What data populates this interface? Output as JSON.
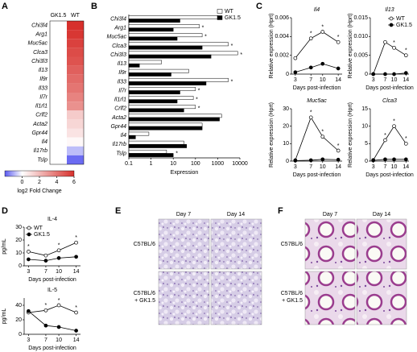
{
  "chart_data": [
    {
      "type": "heatmap",
      "categories": [
        "Chi3l4",
        "Arg1",
        "Muc5ac",
        "Clca3",
        "Chi3l3",
        "Il13",
        "Il9r",
        "Il33",
        "Il7r",
        "Il1rl1",
        "Crlf2",
        "Acta2",
        "Gpr44",
        "Il4",
        "Il17rb",
        "Tslp"
      ],
      "series": [
        {
          "name": "GK1.5",
          "values": [
            0,
            0,
            0,
            0,
            0,
            0,
            0,
            0,
            0,
            0,
            0,
            0,
            0,
            0,
            0,
            0
          ]
        },
        {
          "name": "WT",
          "values": [
            6.5,
            5.8,
            5.5,
            5.2,
            5.0,
            4.6,
            4.3,
            4.0,
            3.6,
            3.2,
            1.5,
            1.2,
            0.8,
            0.2,
            -0.8,
            -1.8
          ]
        }
      ],
      "zlim": [
        -2,
        6
      ],
      "zticks": [
        0,
        2,
        4,
        6
      ],
      "zlabel": "log2 Fold Change",
      "colors": {
        "low": "#5a5af0",
        "mid": "#ffffff",
        "high": "#d7302c"
      }
    },
    {
      "type": "hbar",
      "categories": [
        "Chi3l4",
        "Arg1",
        "Muc5ac",
        "Clca3",
        "Chi3l3",
        "Il13",
        "Il9r",
        "Il33",
        "Il7r",
        "Il1rl1",
        "Crlf2",
        "Acta2",
        "Gpr44",
        "Il4",
        "Il17rb",
        "Tslp"
      ],
      "series": [
        {
          "name": "WT",
          "color": "#ffffff",
          "values": [
            1000,
            150,
            200,
            3000,
            8000,
            3,
            50,
            3000,
            100,
            80,
            100,
            1500,
            200,
            0.8,
            30,
            5
          ]
        },
        {
          "name": "GK1.5",
          "color": "#000000",
          "values": [
            20,
            10,
            15,
            200,
            500,
            0.3,
            8,
            300,
            20,
            15,
            30,
            1200,
            200,
            0.2,
            40,
            10
          ]
        }
      ],
      "significance": [
        "*",
        "*",
        "*",
        "*",
        "*",
        null,
        null,
        "*",
        "*",
        "*",
        "*",
        null,
        null,
        null,
        null,
        "*"
      ],
      "xscale": "log",
      "xlim": [
        0.1,
        10000
      ],
      "xticks": [
        0.1,
        1,
        10,
        100,
        1000,
        10000
      ],
      "x_label": "Expression",
      "legend": "upper right"
    },
    {
      "type": "line",
      "title": "Il4",
      "x": [
        3,
        7,
        10,
        14
      ],
      "series": [
        {
          "color": "#ffffff",
          "values": [
            0.0017,
            0.0038,
            0.0045,
            0.0034
          ]
        },
        {
          "color": "#000000",
          "values": [
            0.0002,
            0.0007,
            0.0011,
            0.0006
          ]
        }
      ],
      "significance": [
        null,
        "*",
        "*",
        "*"
      ],
      "xlim": [
        2,
        15
      ],
      "xticks": [
        3,
        7,
        10,
        14
      ],
      "ylim": [
        0,
        0.006
      ],
      "yticks": [
        0,
        0.002,
        0.004,
        0.006
      ],
      "x_label": "Days post-infection",
      "y_label": "Relative expression (Hprt)"
    },
    {
      "type": "line",
      "title": "Il13",
      "x": [
        3,
        7,
        10,
        14
      ],
      "series": [
        {
          "name": "WT",
          "color": "#ffffff",
          "values": [
            0,
            0.0085,
            0.007,
            0.005
          ]
        },
        {
          "name": "GK1.5",
          "color": "#000000",
          "values": [
            0,
            0,
            0,
            0.0003
          ]
        }
      ],
      "significance": [
        null,
        null,
        "*",
        "*"
      ],
      "xlim": [
        2,
        15
      ],
      "xticks": [
        3,
        7,
        10,
        14
      ],
      "ylim": [
        0,
        0.015
      ],
      "yticks": [
        0,
        {
          "value": 0.005,
          "label": "0.005"
        },
        {
          "value": 0.01,
          "label": "0.010"
        },
        {
          "value": 0.015,
          "label": "0.015"
        }
      ],
      "x_label": "Days post-infection",
      "y_label": "Relative expression (Hprt)",
      "legend": "upper right"
    },
    {
      "type": "line",
      "title": "Muc5ac",
      "x": [
        3,
        7,
        10,
        14
      ],
      "series": [
        {
          "color": "#ffffff",
          "values": [
            0.5,
            25,
            14,
            6
          ]
        },
        {
          "color": "#000000",
          "values": [
            0.3,
            0.5,
            1,
            0.8
          ]
        }
      ],
      "significance": [
        null,
        "*",
        "*",
        "*"
      ],
      "xlim": [
        2,
        15
      ],
      "xticks": [
        3,
        7,
        10,
        14
      ],
      "ylim": [
        0,
        30
      ],
      "yticks": [
        0,
        10,
        20,
        30
      ],
      "x_label": "Days post-infection",
      "y_label": "Relative expression (Hprt)"
    },
    {
      "type": "line",
      "title": "Clca3",
      "x": [
        3,
        7,
        10,
        14
      ],
      "series": [
        {
          "color": "#ffffff",
          "values": [
            0.3,
            6,
            10,
            5
          ]
        },
        {
          "color": "#000000",
          "values": [
            0.2,
            0.5,
            0.5,
            0.5
          ]
        }
      ],
      "significance": [
        null,
        "*",
        "*",
        "*"
      ],
      "xlim": [
        2,
        15
      ],
      "xticks": [
        3,
        7,
        10,
        14
      ],
      "ylim": [
        0,
        15
      ],
      "yticks": [
        0,
        5,
        10,
        15
      ],
      "x_label": "Days post-infection",
      "y_label": "Relative expression (Hprt)"
    },
    {
      "type": "line",
      "title": "IL-4",
      "x": [
        3,
        7,
        10,
        14
      ],
      "series": [
        {
          "name": "WT",
          "color": "#ffffff",
          "values": [
            11,
            8,
            12,
            18
          ]
        },
        {
          "name": "GK1.5",
          "color": "#000000",
          "values": [
            5,
            4,
            6,
            7
          ]
        }
      ],
      "significance": [
        "*",
        null,
        "*",
        "*"
      ],
      "xlim": [
        2,
        15
      ],
      "xticks": [
        3,
        7,
        10,
        14
      ],
      "ylim": [
        0,
        30
      ],
      "yticks": [
        0,
        10,
        20,
        30
      ],
      "x_label": "Days post-infection",
      "y_label": "pg/mL",
      "legend": "upper left"
    },
    {
      "type": "line",
      "title": "IL-5",
      "x": [
        3,
        7,
        10,
        14
      ],
      "series": [
        {
          "color": "#ffffff",
          "values": [
            30,
            33,
            40,
            30
          ]
        },
        {
          "color": "#000000",
          "values": [
            32,
            12,
            10,
            5
          ]
        }
      ],
      "significance": [
        null,
        "*",
        "*",
        "*"
      ],
      "xlim": [
        2,
        15
      ],
      "xticks": [
        3,
        7,
        10,
        14
      ],
      "ylim": [
        0,
        50
      ],
      "yticks": [
        0,
        20,
        40
      ],
      "x_label": "Days post-infection",
      "y_label": "pg/mL"
    }
  ],
  "figure": {
    "panel_labels": [
      "A",
      "B",
      "C",
      "D",
      "E",
      "F"
    ],
    "panel_e": {
      "columns": [
        "Day 7",
        "Day 14"
      ],
      "rows": [
        [
          "C57BL/6"
        ],
        [
          "C57BL/6",
          "+ GK1.5"
        ]
      ]
    },
    "panel_f": {
      "columns": [
        "Day 7",
        "Day 14"
      ],
      "rows": [
        [
          "C57BL/6"
        ],
        [
          "C57BL/6",
          "+ GK1.5"
        ]
      ]
    }
  }
}
